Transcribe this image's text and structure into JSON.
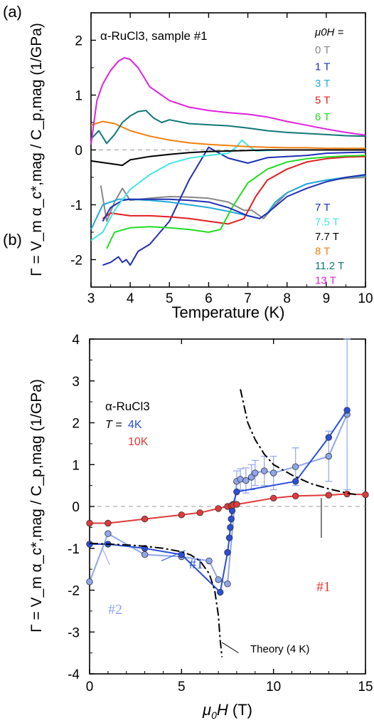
{
  "chart_data": [
    {
      "panel_label": "(a)",
      "type": "line",
      "title": "α-RuCl3, sample #1",
      "xlabel": "Temperature (K)",
      "ylabel": "Γ = V_m α_c*,mag / C_p,mag (1/GPa)",
      "xlim": [
        3,
        10
      ],
      "ylim": [
        -2.5,
        2.5
      ],
      "xticks": [
        3,
        4,
        5,
        6,
        7,
        8,
        9,
        10
      ],
      "yticks": [
        -2,
        -1,
        0,
        1,
        2
      ],
      "legend_title": "μ0H =",
      "grid": false,
      "zero_line": true,
      "series": [
        {
          "name": "0 T",
          "color": "#888888",
          "x": [
            3.25,
            3.4,
            3.6,
            3.8,
            4.0,
            4.5,
            5.0,
            5.5,
            6.0,
            6.5,
            6.9,
            7.1,
            7.4,
            7.7,
            8.0,
            8.5,
            9.0,
            9.5,
            10.0
          ],
          "y": [
            -0.65,
            -1.3,
            -0.95,
            -0.7,
            -0.92,
            -0.88,
            -0.85,
            -0.86,
            -0.88,
            -0.95,
            -1.1,
            -1.1,
            -1.25,
            -1.0,
            -0.78,
            -0.62,
            -0.55,
            -0.52,
            -0.5
          ]
        },
        {
          "name": "1 T",
          "color": "#1f2fb3",
          "x": [
            3.3,
            3.5,
            3.7,
            3.8,
            3.9,
            4.0,
            4.2,
            4.5,
            5.0,
            5.5,
            6.0,
            6.5,
            7.0,
            7.5,
            8.0,
            8.5,
            9.0,
            9.5,
            10.0
          ],
          "y": [
            -2.1,
            -2.05,
            -1.95,
            -2.05,
            -2.0,
            -2.1,
            -1.85,
            -1.72,
            -1.3,
            -0.55,
            0.05,
            -0.15,
            -0.24,
            -0.14,
            -0.12,
            -0.1,
            -0.06,
            -0.05,
            -0.04
          ]
        },
        {
          "name": "3 T",
          "color": "#22aadd",
          "x": [
            3.0,
            3.3,
            3.5,
            3.7,
            4.0,
            4.5,
            5.0,
            5.5,
            6.0,
            6.5,
            7.0,
            7.3,
            7.5,
            7.7,
            8.0,
            8.5,
            9.0,
            9.5,
            10.0
          ],
          "y": [
            -1.45,
            -1.0,
            -0.95,
            -0.9,
            -0.9,
            -0.92,
            -0.95,
            -1.0,
            -1.05,
            -1.12,
            -1.2,
            -1.25,
            -1.15,
            -0.95,
            -0.78,
            -0.62,
            -0.55,
            -0.5,
            -0.47
          ]
        },
        {
          "name": "5 T",
          "color": "#e02020",
          "x": [
            3.3,
            3.5,
            4.0,
            4.5,
            5.0,
            5.5,
            6.0,
            6.5,
            6.9,
            7.2,
            7.5,
            8.0,
            8.5,
            9.0,
            9.5,
            10.0
          ],
          "y": [
            -1.25,
            -1.15,
            -1.2,
            -1.2,
            -1.22,
            -1.25,
            -1.3,
            -1.35,
            -1.25,
            -0.85,
            -0.55,
            -0.35,
            -0.22,
            -0.16,
            -0.13,
            -0.12
          ]
        },
        {
          "name": "6 T",
          "color": "#22dd22",
          "x": [
            3.4,
            3.6,
            4.0,
            4.5,
            5.0,
            5.5,
            6.0,
            6.3,
            6.6,
            7.0,
            7.5,
            8.0,
            8.5,
            9.0,
            9.5,
            10.0
          ],
          "y": [
            -1.8,
            -1.5,
            -1.42,
            -1.4,
            -1.42,
            -1.45,
            -1.5,
            -1.45,
            -1.05,
            -0.6,
            -0.35,
            -0.22,
            -0.16,
            -0.13,
            -0.11,
            -0.1
          ]
        },
        {
          "name": "7 T",
          "color": "#1f2fb3",
          "x": [
            3.3,
            3.5,
            3.8,
            4.0,
            4.5,
            5.0,
            5.5,
            6.0,
            6.5,
            7.0,
            7.3,
            7.5,
            8.0,
            8.5,
            9.0,
            9.5,
            10.0
          ],
          "y": [
            -1.3,
            -1.05,
            -0.92,
            -0.9,
            -0.9,
            -0.9,
            -0.92,
            -0.95,
            -1.05,
            -1.2,
            -1.25,
            -1.15,
            -0.85,
            -0.7,
            -0.58,
            -0.5,
            -0.45
          ]
        },
        {
          "name": "7.5 T",
          "color": "#44e5e5",
          "x": [
            3.0,
            3.3,
            3.6,
            4.0,
            4.5,
            5.0,
            5.5,
            6.0,
            6.5,
            6.7,
            6.85,
            7.0,
            7.2,
            7.5,
            8.0,
            9.0,
            10.0
          ],
          "y": [
            -1.65,
            -1.5,
            -1.1,
            -0.72,
            -0.45,
            -0.25,
            -0.15,
            -0.1,
            -0.06,
            0.05,
            0.18,
            0.08,
            -0.02,
            -0.01,
            0.0,
            0.0,
            0.0
          ]
        },
        {
          "name": "7.7 T",
          "color": "#000000",
          "x": [
            3.0,
            3.5,
            3.8,
            4.0,
            4.5,
            5.0,
            5.5,
            6.0,
            6.5,
            7.0,
            7.5,
            8.0,
            9.0,
            10.0
          ],
          "y": [
            -0.2,
            -0.25,
            -0.28,
            -0.18,
            -0.12,
            -0.08,
            -0.05,
            -0.03,
            -0.02,
            -0.01,
            0.0,
            0.0,
            0.0,
            0.0
          ]
        },
        {
          "name": "8 T",
          "color": "#f08010",
          "x": [
            3.0,
            3.3,
            3.6,
            4.0,
            4.5,
            5.0,
            5.5,
            6.0,
            6.5,
            7.0,
            7.5,
            8.0,
            8.5,
            9.0,
            9.5,
            10.0
          ],
          "y": [
            0.45,
            0.52,
            0.48,
            0.35,
            0.25,
            0.18,
            0.13,
            0.1,
            0.08,
            0.06,
            0.05,
            0.04,
            0.04,
            0.03,
            0.03,
            0.03
          ]
        },
        {
          "name": "11.2 T",
          "color": "#117777",
          "x": [
            3.0,
            3.2,
            3.4,
            3.6,
            3.8,
            4.0,
            4.2,
            4.4,
            4.6,
            4.8,
            5.0,
            5.5,
            6.0,
            6.5,
            7.0,
            7.5,
            8.0,
            8.5,
            9.0,
            9.5,
            10.0
          ],
          "y": [
            0.2,
            0.35,
            0.12,
            0.28,
            0.5,
            0.62,
            0.7,
            0.72,
            0.58,
            0.5,
            0.55,
            0.48,
            0.46,
            0.44,
            0.4,
            0.35,
            0.32,
            0.3,
            0.28,
            0.26,
            0.25
          ]
        },
        {
          "name": "13 T",
          "color": "#dd22dd",
          "x": [
            3.0,
            3.15,
            3.3,
            3.5,
            3.7,
            3.85,
            4.0,
            4.2,
            4.5,
            5.0,
            5.5,
            6.0,
            6.5,
            7.0,
            7.5,
            8.0,
            8.5,
            9.0,
            9.5,
            10.0
          ],
          "y": [
            0.1,
            0.9,
            1.2,
            1.45,
            1.62,
            1.68,
            1.65,
            1.5,
            1.15,
            0.9,
            0.78,
            0.72,
            0.68,
            0.65,
            0.6,
            0.52,
            0.45,
            0.38,
            0.32,
            0.27
          ]
        }
      ]
    },
    {
      "panel_label": "(b)",
      "type": "line",
      "title": "α-RuCl3",
      "legend_prefix": "T =",
      "xlabel": "μ0H (T)",
      "ylabel": "Γ = V_m α_c*,mag / C_p,mag (1/GPa)",
      "xlim": [
        0,
        15
      ],
      "ylim": [
        -4,
        4
      ],
      "xticks": [
        0,
        5,
        10,
        15
      ],
      "yticks": [
        -4,
        -3,
        -2,
        -1,
        0,
        1,
        2,
        3,
        4
      ],
      "grid": false,
      "zero_line": true,
      "legend": [
        {
          "label": "4K",
          "color": "#2a4fd8"
        },
        {
          "label": "10K",
          "color": "#e03a3a"
        }
      ],
      "series": [
        {
          "name": "4K #2",
          "color": "#8fa6ec",
          "x": [
            0,
            1,
            3,
            5,
            6.5,
            7.0,
            7.5,
            8.0,
            8.2,
            8.5,
            8.8,
            9.0,
            9.5,
            10.0,
            11.2,
            13.0,
            14.0
          ],
          "y": [
            -1.8,
            -0.65,
            -1.15,
            -1.2,
            -1.3,
            -1.75,
            -1.85,
            0.6,
            0.65,
            0.62,
            0.7,
            0.8,
            0.85,
            0.8,
            0.95,
            1.2,
            2.2
          ],
          "yerr": [
            0,
            0,
            0,
            0,
            0,
            0,
            0,
            0.25,
            0.25,
            0.3,
            0.3,
            0.3,
            0.35,
            0.4,
            0.45,
            0.6,
            1.8
          ]
        },
        {
          "name": "4K #1",
          "color": "#2a4fd8",
          "x": [
            0,
            1,
            3,
            5,
            7.1,
            7.5,
            7.6,
            7.65,
            7.7,
            7.75,
            7.8,
            8.0,
            11.2,
            13.0,
            14.0
          ],
          "y": [
            -0.9,
            -0.9,
            -1.0,
            -1.15,
            -2.05,
            -1.1,
            -0.75,
            -0.5,
            -0.3,
            -0.1,
            0.05,
            0.35,
            0.6,
            1.65,
            2.3
          ]
        },
        {
          "name": "10K #1",
          "color": "#e03a3a",
          "x": [
            0,
            1,
            3,
            5,
            6,
            7,
            7.5,
            7.7,
            7.8,
            8.0,
            10.0,
            11.2,
            13.0,
            14.0,
            15.0
          ],
          "y": [
            -0.4,
            -0.4,
            -0.3,
            -0.2,
            -0.15,
            -0.05,
            0.0,
            0.02,
            0.03,
            0.05,
            0.2,
            0.25,
            0.27,
            0.3,
            0.28
          ]
        },
        {
          "name": "Theory (4 K)",
          "color": "#000000",
          "dash": "dashdot",
          "x": [
            0,
            1,
            2,
            3,
            4,
            5,
            5.5,
            6,
            6.5,
            6.8,
            7.0,
            7.1,
            7.2
          ],
          "y": [
            -0.88,
            -0.9,
            -0.92,
            -0.95,
            -1.0,
            -1.08,
            -1.16,
            -1.3,
            -1.6,
            -2.0,
            -2.6,
            -3.2,
            -3.6
          ],
          "x2": [
            8.2,
            8.6,
            9.0,
            9.5,
            10.0,
            11.0,
            12.0,
            13.0,
            14.0,
            14.5
          ],
          "y2": [
            2.8,
            2.0,
            1.6,
            1.25,
            1.0,
            0.75,
            0.55,
            0.42,
            0.32,
            0.28
          ]
        }
      ],
      "annotations": [
        {
          "text": "#2",
          "color": "#8fa6ec"
        },
        {
          "text": "#1",
          "color": "#2a4fd8"
        },
        {
          "text": "#1",
          "color": "#e03a3a"
        },
        {
          "text": "Theory (4 K)",
          "color": "#000000"
        }
      ]
    }
  ]
}
